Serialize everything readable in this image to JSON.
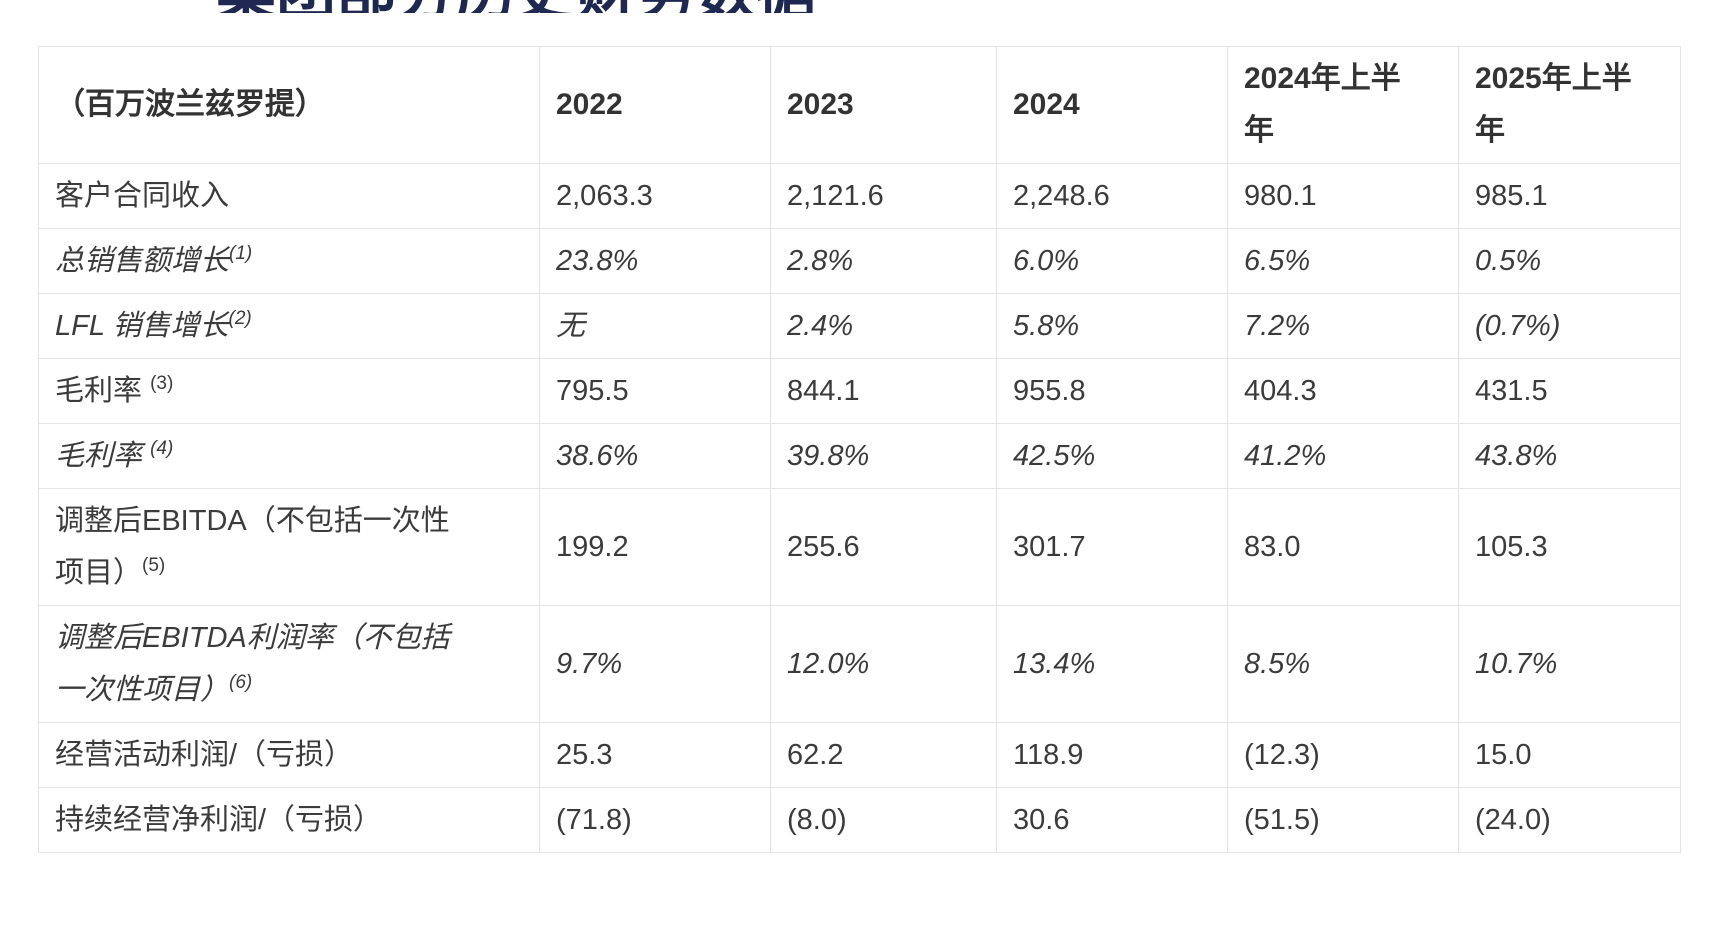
{
  "page": {
    "title_clipped_text": "集团部分历史财务数据",
    "title_color": "#1f2850"
  },
  "table": {
    "unit_label": "（百万波兰兹罗提）",
    "year_columns": [
      "2022",
      "2023",
      "2024",
      "2024年上半年",
      "2025年上半年"
    ],
    "rows": [
      {
        "label": "客户合同收入",
        "sup": "",
        "italic": false,
        "values": [
          "2,063.3",
          "2,121.6",
          "2,248.6",
          "980.1",
          "985.1"
        ]
      },
      {
        "label": "总销售额增长",
        "sup": "(1)",
        "italic": true,
        "values": [
          "23.8%",
          "2.8%",
          "6.0%",
          "6.5%",
          "0.5%"
        ]
      },
      {
        "label": "LFL 销售增长",
        "sup": "(2)",
        "italic": true,
        "values": [
          "无",
          "2.4%",
          "5.8%",
          "7.2%",
          "(0.7%)"
        ]
      },
      {
        "label": "毛利率 ",
        "sup": "(3)",
        "italic": false,
        "values": [
          "795.5",
          "844.1",
          "955.8",
          "404.3",
          "431.5"
        ]
      },
      {
        "label": "毛利率 ",
        "sup": "(4)",
        "italic": true,
        "values": [
          "38.6%",
          "39.8%",
          "42.5%",
          "41.2%",
          "43.8%"
        ]
      },
      {
        "label": "调整后EBITDA（不包括一次性项目）",
        "sup": "(5)",
        "italic": false,
        "values": [
          "199.2",
          "255.6",
          "301.7",
          "83.0",
          "105.3"
        ]
      },
      {
        "label": "调整后EBITDA利润率（不包括一次性项目）",
        "sup": "(6)",
        "italic": true,
        "values": [
          "9.7%",
          "12.0%",
          "13.4%",
          "8.5%",
          "10.7%"
        ]
      },
      {
        "label": "经营活动利润/（亏损）",
        "sup": "",
        "italic": false,
        "values": [
          "25.3",
          "62.2",
          "118.9",
          "(12.3)",
          "15.0"
        ]
      },
      {
        "label": "持续经营净利润/（亏损）",
        "sup": "",
        "italic": false,
        "values": [
          "(71.8)",
          "(8.0)",
          "30.6",
          "(51.5)",
          "(24.0)"
        ]
      }
    ]
  }
}
